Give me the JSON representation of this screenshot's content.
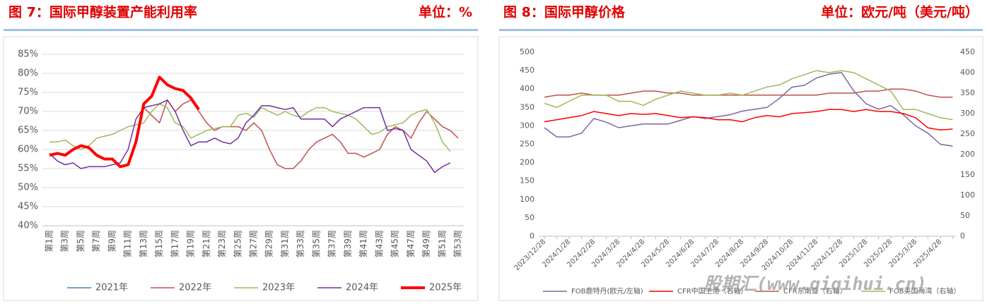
{
  "chart_data": [
    {
      "type": "line",
      "title": "图 7：国际甲醇装置产能利用率",
      "unit": "单位：%",
      "categories": [
        "第1周",
        null,
        "第3周",
        null,
        "第5周",
        null,
        "第7周",
        null,
        "第9周",
        null,
        "第11周",
        null,
        "第13周",
        null,
        "第15周",
        null,
        "第17周",
        null,
        "第19周",
        null,
        "第21周",
        null,
        "第23周",
        null,
        "第25周",
        null,
        "第27周",
        null,
        "第29周",
        null,
        "第31周",
        null,
        "第33周",
        null,
        "第35周",
        null,
        "第37周",
        null,
        "第39周",
        null,
        "第41周",
        null,
        "第43周",
        null,
        "第45周",
        null,
        "第47周",
        null,
        "第49周",
        null,
        "第51周",
        null,
        "第53周"
      ],
      "ylim": [
        40,
        85
      ],
      "yticks": [
        {
          "value": 40,
          "label": "40%"
        },
        {
          "value": 45,
          "label": "45%"
        },
        {
          "value": 50,
          "label": "50%"
        },
        {
          "value": 55,
          "label": "55%"
        },
        {
          "value": 60,
          "label": "60%"
        },
        {
          "value": 65,
          "label": "65%"
        },
        {
          "value": 70,
          "label": "70%"
        },
        {
          "value": 75,
          "label": "75%"
        },
        {
          "value": 80,
          "label": "80%"
        },
        {
          "value": 85,
          "label": "85%"
        }
      ],
      "grid": true,
      "legend": "bottom",
      "series": [
        {
          "name": "2021年",
          "color": "#4a7ebb",
          "width": 1.5,
          "values": [
            null,
            null,
            null,
            null,
            null,
            null,
            null,
            null,
            null,
            null,
            null,
            null,
            null,
            null,
            null,
            null,
            null,
            null,
            null,
            null,
            null,
            null,
            null,
            null,
            null,
            null,
            null,
            null,
            null,
            null,
            null,
            null,
            null,
            null,
            null,
            null,
            null,
            null,
            null,
            null,
            null,
            null,
            null,
            null,
            null,
            null,
            null,
            null,
            null,
            null,
            null,
            null,
            null
          ]
        },
        {
          "name": "2022年",
          "color": "#c0504d",
          "width": 1.5,
          "values": [
            null,
            null,
            null,
            null,
            null,
            null,
            null,
            null,
            null,
            null,
            null,
            null,
            71,
            69,
            67,
            73,
            70,
            72,
            73,
            70,
            67,
            65,
            66,
            66,
            66,
            65,
            67,
            65,
            60,
            56,
            55,
            55,
            57,
            60,
            62,
            63,
            64,
            62,
            59,
            59,
            58,
            59,
            60,
            64,
            66,
            65,
            63,
            67,
            70,
            68,
            66,
            65,
            63
          ]
        },
        {
          "name": "2023年",
          "color": "#9bbb59",
          "width": 1.5,
          "values": [
            62,
            62,
            62.5,
            61,
            60,
            61,
            63,
            63.5,
            64,
            65,
            66,
            66.5,
            67,
            70,
            72,
            71,
            67,
            66,
            63,
            64,
            65,
            65.5,
            66,
            66,
            69,
            69.5,
            68.5,
            71,
            70,
            69,
            70,
            69,
            68.5,
            70,
            71,
            71,
            70,
            69.5,
            69,
            68,
            66,
            64,
            64.5,
            66,
            66.5,
            67,
            69,
            70,
            70.5,
            67,
            62,
            59.5,
            null
          ]
        },
        {
          "name": "2024年",
          "color": "#7030a0",
          "width": 1.5,
          "values": [
            59,
            57,
            56,
            56.5,
            55,
            55.5,
            55.5,
            55.5,
            56,
            56.5,
            60,
            68,
            71,
            71.5,
            72,
            73,
            70,
            65,
            61,
            62,
            62,
            63,
            62,
            61.5,
            63,
            67,
            69,
            71.5,
            71.5,
            71,
            70.5,
            71,
            68,
            68,
            68,
            68,
            66,
            68,
            69,
            70,
            71,
            71,
            71,
            65,
            65.5,
            65,
            60,
            58.5,
            57,
            54,
            55.5,
            56.5,
            null
          ]
        },
        {
          "name": "2025年",
          "color": "#ff0000",
          "width": 4,
          "values": [
            58.5,
            59,
            58.5,
            60,
            61,
            60.5,
            58.5,
            57.5,
            57.5,
            55.5,
            56,
            62,
            72,
            74,
            79,
            77,
            76,
            75.5,
            73.5,
            70.5,
            null,
            null,
            null,
            null,
            null,
            null,
            null,
            null,
            null,
            null,
            null,
            null,
            null,
            null,
            null,
            null,
            null,
            null,
            null,
            null,
            null,
            null,
            null,
            null,
            null,
            null,
            null,
            null,
            null,
            null,
            null,
            null,
            null
          ]
        }
      ]
    },
    {
      "type": "line",
      "title": "图 8：国际甲醇价格",
      "unit": "单位：欧元/吨（美元/吨）",
      "categories": [
        "2023/12/28",
        null,
        "2024/1/28",
        null,
        "2024/2/28",
        null,
        "2024/3/28",
        null,
        "2024/4/28",
        null,
        "2024/5/28",
        null,
        "2024/6/28",
        null,
        "2024/7/28",
        null,
        "2024/8/28",
        null,
        "2024/9/28",
        null,
        "2024/10/28",
        null,
        "2024/11/28",
        null,
        "2024/12/28",
        null,
        "2025/1/28",
        null,
        "2025/2/28",
        null,
        "2025/3/28",
        null,
        "2025/4/28",
        null
      ],
      "ylim": [
        0,
        500
      ],
      "yticks": [
        0,
        50,
        100,
        150,
        200,
        250,
        300,
        350,
        400,
        450,
        500
      ],
      "y2lim": [
        0,
        450
      ],
      "y2ticks": [
        0,
        50,
        100,
        150,
        200,
        250,
        300,
        350,
        400,
        450
      ],
      "grid": false,
      "legend": "bottom",
      "series": [
        {
          "name": "FOB鹿特丹(欧元/左轴)",
          "color": "#8064a2",
          "width": 1.5,
          "values": [
            295,
            270,
            270,
            280,
            320,
            310,
            295,
            300,
            305,
            305,
            305,
            315,
            325,
            320,
            325,
            330,
            340,
            345,
            350,
            375,
            405,
            410,
            430,
            440,
            445,
            395,
            360,
            345,
            355,
            330,
            300,
            280,
            250,
            245
          ]
        },
        {
          "name": "CFR中国主港（右轴）",
          "color": "#ff0000",
          "width": 1.5,
          "axis": "y2",
          "values": [
            280,
            285,
            290,
            295,
            305,
            300,
            295,
            300,
            298,
            300,
            295,
            290,
            292,
            290,
            285,
            285,
            280,
            290,
            295,
            292,
            300,
            302,
            305,
            310,
            310,
            305,
            310,
            305,
            305,
            300,
            290,
            265,
            260,
            262
          ]
        },
        {
          "name": "CFR东南亚（右轴）",
          "color": "#c0504d",
          "width": 1.5,
          "axis": "y2",
          "values": [
            340,
            345,
            345,
            350,
            345,
            345,
            345,
            350,
            355,
            355,
            350,
            350,
            345,
            345,
            345,
            345,
            345,
            345,
            345,
            345,
            345,
            345,
            345,
            350,
            350,
            350,
            355,
            355,
            360,
            360,
            355,
            345,
            340,
            340
          ]
        },
        {
          "name": "FOB美国海湾（右轴）",
          "color": "#9bbb59",
          "width": 1.5,
          "axis": "y2",
          "values": [
            325,
            315,
            330,
            345,
            345,
            345,
            330,
            330,
            320,
            335,
            345,
            355,
            350,
            345,
            345,
            350,
            345,
            355,
            365,
            370,
            385,
            395,
            405,
            400,
            405,
            400,
            385,
            370,
            355,
            310,
            310,
            300,
            290,
            285
          ]
        }
      ]
    }
  ],
  "watermark": "股期汇(www.qiqihui.cn)"
}
